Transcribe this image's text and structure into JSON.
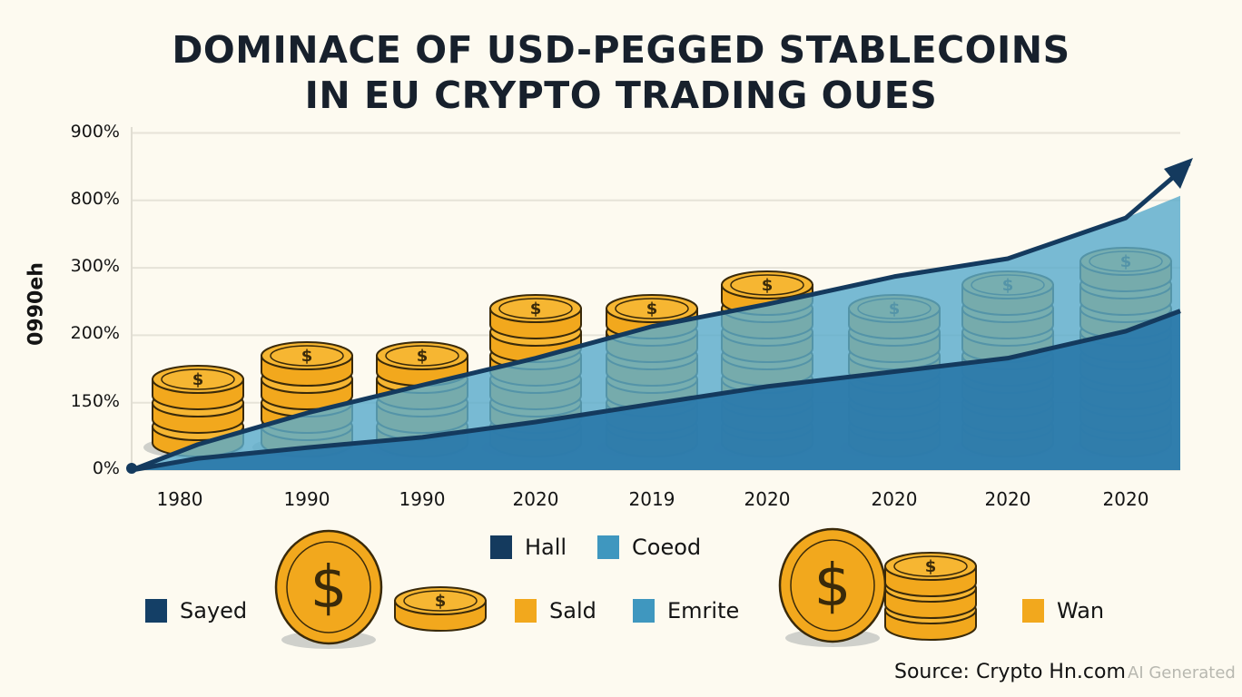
{
  "title_lines": [
    "DOMINACE OF USD-PEGGED STABLECOINS",
    "IN EU CRYPTO TRADING OUES"
  ],
  "source": "Source: Crypto Hn.com",
  "watermark": "AI Generated",
  "colors": {
    "dark_line": "#143a5e",
    "upper_area": "#5aaccc",
    "lower_area": "#2c7aab",
    "coin": "#f2a81d",
    "coin_outline": "#3a2a0a",
    "background": "#fdfaf0"
  },
  "chart_data": {
    "type": "area",
    "title": "DOMINACE OF USD-PEGGED STABLECOINS IN EU CRYPTO TRADING OUES",
    "ylabel": "0990eh",
    "xlabel": "",
    "categories": [
      "1980",
      "1990",
      "1990",
      "2020",
      "2019",
      "2020",
      "2020",
      "2020",
      "2020"
    ],
    "y_ticks": [
      "0%",
      "150%",
      "200%",
      "300%",
      "800%",
      "900%"
    ],
    "y_tick_values": [
      0,
      150,
      200,
      300,
      800,
      900
    ],
    "ylim": [
      0,
      900
    ],
    "y_scale": "non-uniform (evenly spaced tick labels)",
    "grid": "horizontal",
    "series": [
      {
        "name": "",
        "color": "#5aaccc",
        "values": [
          57,
          127,
          163,
          183,
          213,
          246,
          287,
          368,
          670
        ]
      },
      {
        "name": "",
        "color": "#2c7aab",
        "values": [
          26,
          50,
          73,
          107,
          147,
          162,
          173,
          183,
          206
        ]
      }
    ],
    "legend": {
      "placement": "bottom",
      "items": [
        {
          "label": "Hall",
          "color": "#143a5e"
        },
        {
          "label": "Coeod",
          "color": "#3f97bf"
        },
        {
          "label": "Sayed",
          "color": "#143f66"
        },
        {
          "label": "Sald",
          "color": "#f2a81d"
        },
        {
          "label": "Emrite",
          "color": "#3f97bf"
        },
        {
          "label": "Wan",
          "color": "#f2a81d"
        }
      ]
    }
  }
}
